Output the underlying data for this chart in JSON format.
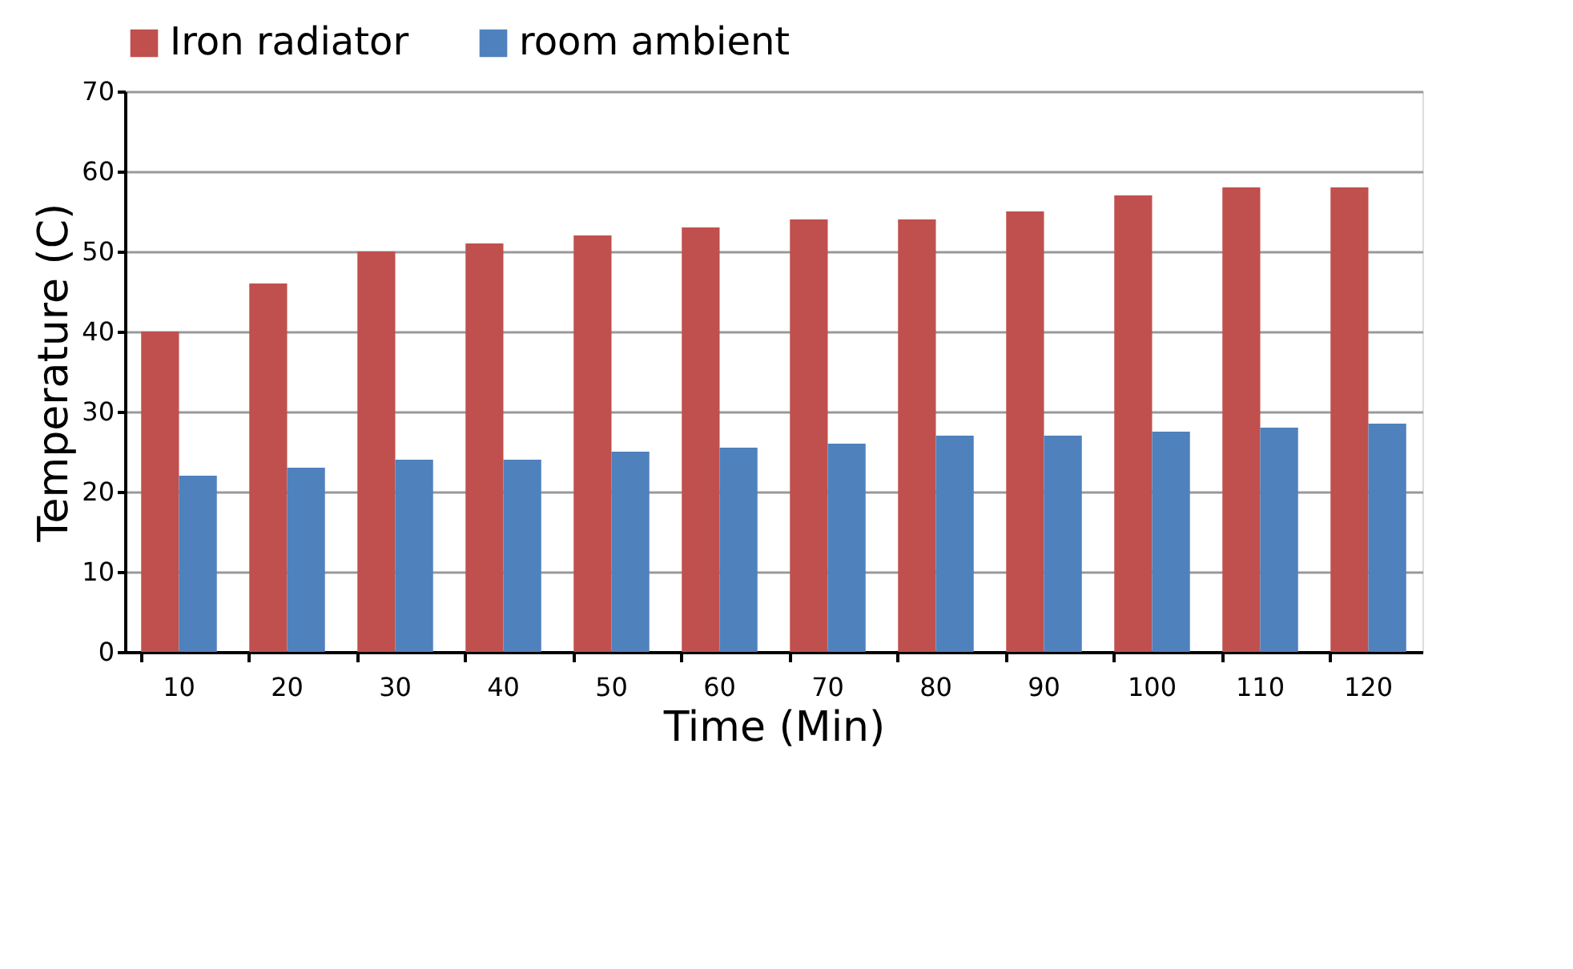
{
  "chart_data": {
    "type": "bar",
    "xlabel": "Time (Min)",
    "ylabel": "Temperature (C)",
    "categories": [
      "10",
      "20",
      "30",
      "40",
      "50",
      "60",
      "70",
      "80",
      "90",
      "100",
      "110",
      "120"
    ],
    "series": [
      {
        "name": "Iron radiator",
        "color": "#c0504d",
        "values": [
          40,
          46,
          50,
          51,
          52,
          53,
          54,
          54,
          55,
          57,
          58,
          58
        ]
      },
      {
        "name": "room ambient",
        "color": "#4f81bd",
        "values": [
          22,
          23,
          24,
          24,
          25,
          25.5,
          26,
          27,
          27,
          27.5,
          28,
          28.5
        ]
      }
    ],
    "ylim": [
      0,
      70
    ],
    "yticks": [
      0,
      10,
      20,
      30,
      40,
      50,
      60,
      70
    ],
    "grid": "y",
    "legend": "top"
  }
}
